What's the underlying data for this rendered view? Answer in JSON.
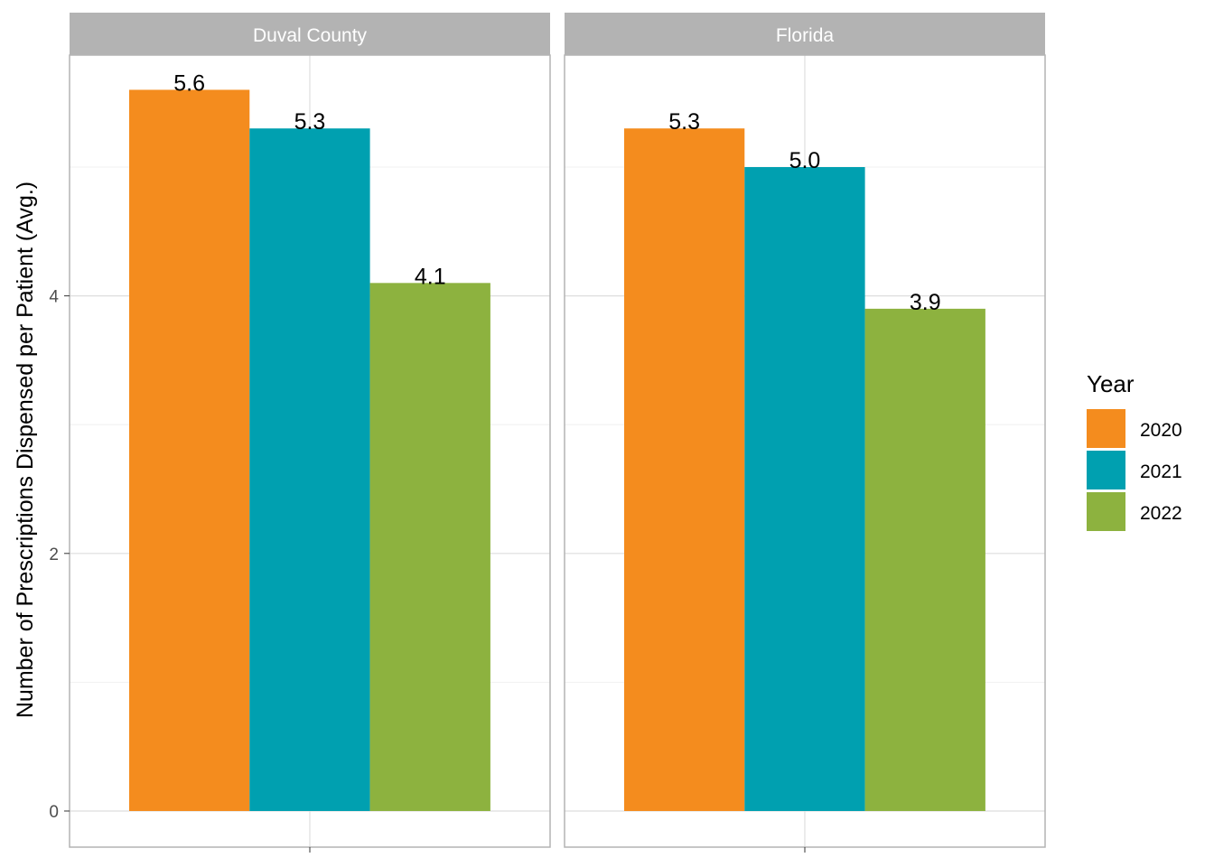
{
  "chart_data": {
    "type": "bar",
    "ylabel": "Number of Prescriptions Dispensed per Patient (Avg.)",
    "xlabel": "",
    "ylim": [
      -0.25,
      5.9
    ],
    "yticks": [
      0,
      2,
      4
    ],
    "grid": true,
    "legend": {
      "title": "Year",
      "placement": "right"
    },
    "panels": [
      {
        "name": "Duval County",
        "series": [
          {
            "name": "2020",
            "value": 5.6,
            "label": "5.6",
            "color": "#F48C1E"
          },
          {
            "name": "2021",
            "value": 5.3,
            "label": "5.3",
            "color": "#00A0B0"
          },
          {
            "name": "2022",
            "value": 4.1,
            "label": "4.1",
            "color": "#8DB23F"
          }
        ]
      },
      {
        "name": "Florida",
        "series": [
          {
            "name": "2020",
            "value": 5.3,
            "label": "5.3",
            "color": "#F48C1E"
          },
          {
            "name": "2021",
            "value": 5.0,
            "label": "5.0",
            "color": "#00A0B0"
          },
          {
            "name": "2022",
            "value": 3.9,
            "label": "3.9",
            "color": "#8DB23F"
          }
        ]
      }
    ],
    "legend_items": [
      {
        "label": "2020",
        "color": "#F48C1E"
      },
      {
        "label": "2021",
        "color": "#00A0B0"
      },
      {
        "label": "2022",
        "color": "#8DB23F"
      }
    ]
  }
}
